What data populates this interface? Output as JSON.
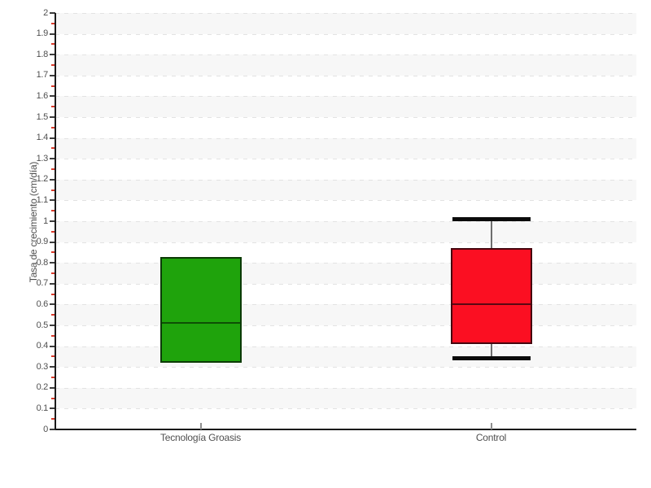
{
  "chart_data": {
    "type": "box",
    "title": "",
    "xlabel": "",
    "ylabel": "Tasa de crecimiento (cm/día)",
    "ylim": [
      0,
      2
    ],
    "ytick_major_step": 0.1,
    "ytick_minor_step": 0.05,
    "yticks": [
      "2",
      "1.9",
      "1.8",
      "1.7",
      "1.6",
      "1.5",
      "1.4",
      "1.3",
      "1.2",
      "1.1",
      "1",
      "0.9",
      "0.8",
      "0.7",
      "0.6",
      "0.5",
      "0.4",
      "0.3",
      "0.2",
      "0.1",
      "0"
    ],
    "categories": [
      "Tecnología Groasis",
      "Control"
    ],
    "series": [
      {
        "name": "Tecnología Groasis",
        "q1": 0.32,
        "median": 0.51,
        "q3": 0.83,
        "whisker_low": null,
        "whisker_high": null,
        "fill_color": "#1fa30c",
        "edge_color": "#0b3a04",
        "median_color": "#0e4f05"
      },
      {
        "name": "Control",
        "q1": 0.41,
        "median": 0.6,
        "q3": 0.87,
        "whisker_low": 0.34,
        "whisker_high": 1.01,
        "fill_color": "#fb0f22",
        "edge_color": "#45060e",
        "median_color": "#5a0812"
      }
    ],
    "legend": null,
    "grid": {
      "axis": "y",
      "style": "dashed",
      "color": "#e3e3e3"
    },
    "background_bands": {
      "color": "#f7f7f7",
      "band_height": 0.1,
      "first_band_top": 2.0,
      "alternate_every": 0.2
    },
    "colors": {
      "axis": "#1a1a1a",
      "major_tick": "#3c3c3c",
      "minor_tick": "#d9392a",
      "text": "#4f4f4f",
      "whisker_line": "#6e6e6e",
      "whisker_cap": "#0b0b0b",
      "plot_background": "#ffffff"
    }
  }
}
